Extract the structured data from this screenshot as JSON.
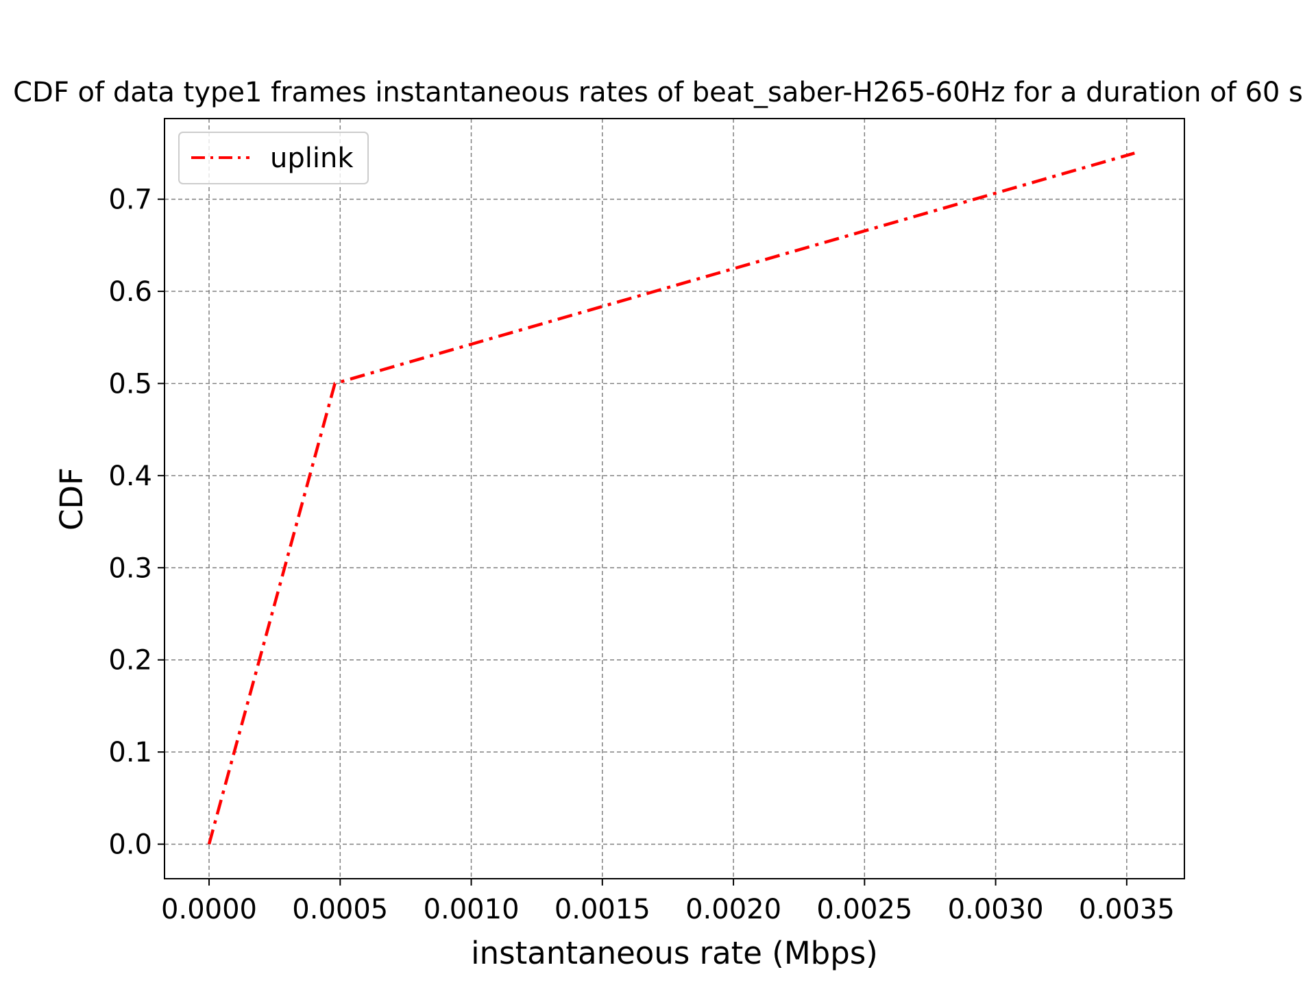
{
  "chart_data": {
    "type": "line",
    "title": "CDF of data type1 frames instantaneous rates of beat_saber-H265-60Hz for a duration of 60 s",
    "xlabel": "instantaneous rate (Mbps)",
    "ylabel": "CDF",
    "xlim": [
      -0.00017,
      0.00372
    ],
    "ylim": [
      -0.0375,
      0.7875
    ],
    "xticks": [
      0.0,
      0.0005,
      0.001,
      0.0015,
      0.002,
      0.0025,
      0.003,
      0.0035
    ],
    "xtick_labels": [
      "0.0000",
      "0.0005",
      "0.0010",
      "0.0015",
      "0.0020",
      "0.0025",
      "0.0030",
      "0.0035"
    ],
    "yticks": [
      0.0,
      0.1,
      0.2,
      0.3,
      0.4,
      0.5,
      0.6,
      0.7
    ],
    "ytick_labels": [
      "0.0",
      "0.1",
      "0.2",
      "0.3",
      "0.4",
      "0.5",
      "0.6",
      "0.7"
    ],
    "grid": true,
    "legend_position": "top-left",
    "series": [
      {
        "name": "uplink",
        "color": "#ff0000",
        "line_style": "dash-dot",
        "x": [
          0.0,
          0.00048,
          0.00353
        ],
        "y": [
          0.0,
          0.5,
          0.75
        ]
      }
    ]
  }
}
